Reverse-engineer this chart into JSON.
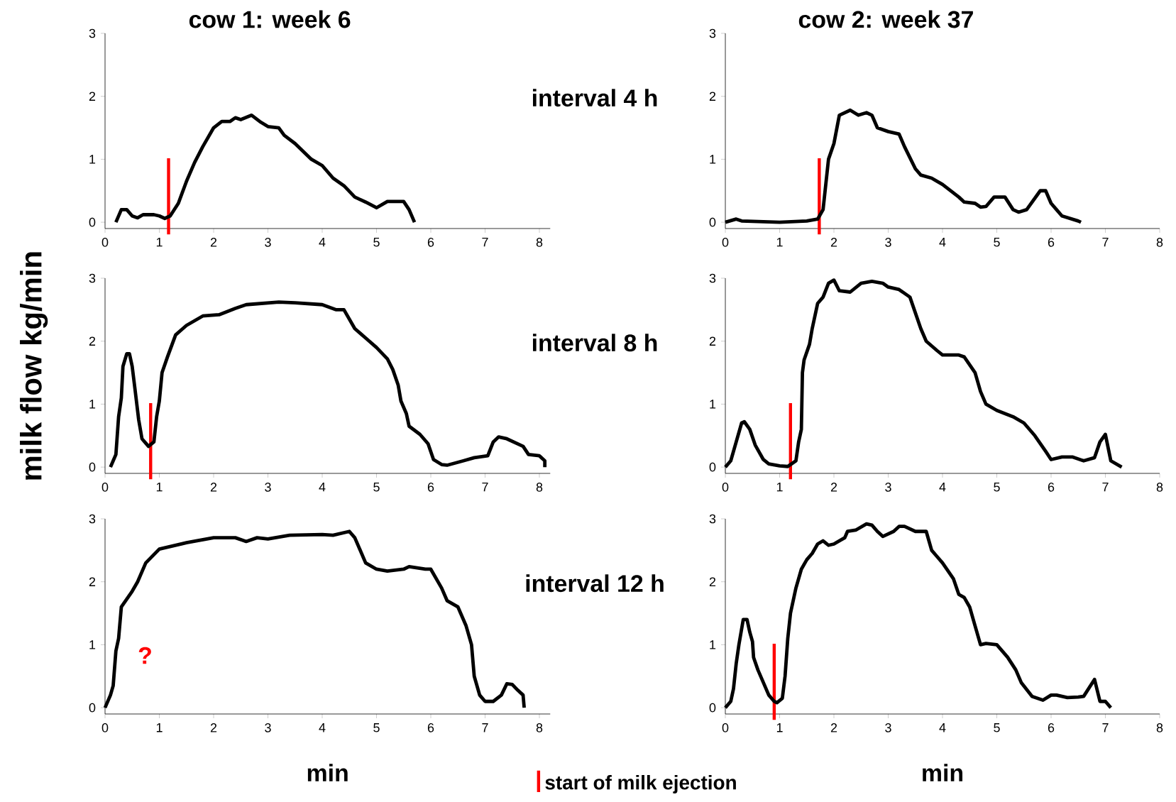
{
  "chart_data": [
    {
      "type": "line",
      "title": "cow 1: week 6",
      "xlim": [
        0,
        8.2
      ],
      "ylim": [
        -0.1,
        3
      ],
      "xticks": [
        0,
        1,
        2,
        3,
        4,
        5,
        6,
        7,
        8
      ],
      "yticks": [
        0,
        1,
        2,
        3
      ],
      "series": [
        {
          "color": "#000000",
          "x": [
            0.2,
            0.3,
            0.4,
            0.5,
            0.6,
            0.7,
            0.9,
            1.0,
            1.1,
            1.2,
            1.35,
            1.5,
            1.65,
            1.8,
            2.0,
            2.15,
            2.3,
            2.4,
            2.5,
            2.7,
            2.85,
            3.0,
            3.2,
            3.3,
            3.5,
            3.8,
            4.0,
            4.2,
            4.4,
            4.6,
            4.8,
            5.0,
            5.2,
            5.5,
            5.6,
            5.7
          ],
          "values": [
            0,
            0.2,
            0.2,
            0.1,
            0.07,
            0.12,
            0.12,
            0.1,
            0.06,
            0.1,
            0.3,
            0.65,
            0.95,
            1.2,
            1.5,
            1.6,
            1.6,
            1.66,
            1.63,
            1.7,
            1.6,
            1.52,
            1.5,
            1.38,
            1.25,
            1.0,
            0.9,
            0.7,
            0.58,
            0.4,
            0.32,
            0.23,
            0.33,
            0.33,
            0.2,
            0
          ]
        }
      ],
      "ref_lines": [
        {
          "axis": "x",
          "value": 1.17,
          "color": "#ff0000"
        }
      ],
      "annotations": [
        "interval 4 h"
      ]
    },
    {
      "type": "line",
      "title": "cow 2: week 37",
      "xlim": [
        0,
        8
      ],
      "ylim": [
        -0.1,
        3
      ],
      "xticks": [
        0,
        1,
        2,
        3,
        4,
        5,
        6,
        7,
        8
      ],
      "yticks": [
        0,
        1,
        2,
        3
      ],
      "series": [
        {
          "color": "#000000",
          "x": [
            0,
            0.2,
            0.3,
            1.0,
            1.5,
            1.7,
            1.8,
            1.9,
            2.0,
            2.1,
            2.3,
            2.45,
            2.6,
            2.7,
            2.8,
            3.0,
            3.2,
            3.3,
            3.5,
            3.6,
            3.8,
            4.0,
            4.3,
            4.4,
            4.6,
            4.7,
            4.8,
            4.95,
            5.15,
            5.3,
            5.4,
            5.55,
            5.8,
            5.9,
            6.0,
            6.1,
            6.2,
            6.5,
            6.55
          ],
          "values": [
            0,
            0.05,
            0.02,
            0,
            0.02,
            0.05,
            0.2,
            1.0,
            1.25,
            1.7,
            1.78,
            1.7,
            1.74,
            1.7,
            1.5,
            1.44,
            1.4,
            1.2,
            0.85,
            0.75,
            0.7,
            0.6,
            0.4,
            0.32,
            0.3,
            0.24,
            0.25,
            0.4,
            0.4,
            0.2,
            0.16,
            0.2,
            0.5,
            0.5,
            0.3,
            0.2,
            0.1,
            0.02,
            0
          ]
        }
      ],
      "ref_lines": [
        {
          "axis": "x",
          "value": 1.73,
          "color": "#ff0000"
        }
      ]
    },
    {
      "type": "line",
      "ylabel": "milk flow  kg/min",
      "xlim": [
        0,
        8.2
      ],
      "ylim": [
        -0.1,
        3
      ],
      "xticks": [
        0,
        1,
        2,
        3,
        4,
        5,
        6,
        7,
        8
      ],
      "yticks": [
        0,
        1,
        2,
        3
      ],
      "series": [
        {
          "color": "#000000",
          "x": [
            0.1,
            0.15,
            0.2,
            0.25,
            0.3,
            0.33,
            0.4,
            0.45,
            0.5,
            0.55,
            0.62,
            0.68,
            0.75,
            0.8,
            0.9,
            0.95,
            1.0,
            1.05,
            1.15,
            1.3,
            1.5,
            1.8,
            2.1,
            2.4,
            2.6,
            3.2,
            3.5,
            4.0,
            4.25,
            4.4,
            4.6,
            4.8,
            5.0,
            5.2,
            5.3,
            5.4,
            5.45,
            5.55,
            5.6,
            5.8,
            5.95,
            6.05,
            6.2,
            6.3,
            6.6,
            6.8,
            7.05,
            7.15,
            7.25,
            7.4,
            7.7,
            7.8,
            8.0,
            8.1,
            8.1
          ],
          "values": [
            0,
            0.1,
            0.2,
            0.8,
            1.1,
            1.6,
            1.8,
            1.8,
            1.6,
            1.25,
            0.75,
            0.45,
            0.38,
            0.33,
            0.4,
            0.8,
            1.05,
            1.5,
            1.75,
            2.1,
            2.25,
            2.4,
            2.42,
            2.52,
            2.58,
            2.62,
            2.61,
            2.58,
            2.5,
            2.5,
            2.2,
            2.05,
            1.9,
            1.72,
            1.55,
            1.3,
            1.05,
            0.85,
            0.65,
            0.52,
            0.37,
            0.12,
            0.04,
            0.03,
            0.1,
            0.15,
            0.18,
            0.4,
            0.48,
            0.45,
            0.33,
            0.2,
            0.18,
            0.1,
            0
          ]
        }
      ],
      "ref_lines": [
        {
          "axis": "x",
          "value": 0.84,
          "color": "#ff0000"
        }
      ],
      "annotations": [
        "interval 8 h"
      ]
    },
    {
      "type": "line",
      "xlim": [
        0,
        8
      ],
      "ylim": [
        -0.1,
        3
      ],
      "xticks": [
        0,
        1,
        2,
        3,
        4,
        5,
        6,
        7,
        8
      ],
      "yticks": [
        0,
        1,
        2,
        3
      ],
      "series": [
        {
          "color": "#000000",
          "x": [
            0,
            0.1,
            0.2,
            0.3,
            0.35,
            0.45,
            0.55,
            0.7,
            0.8,
            1.0,
            1.15,
            1.3,
            1.35,
            1.4,
            1.42,
            1.45,
            1.55,
            1.6,
            1.7,
            1.8,
            1.9,
            2.0,
            2.1,
            2.3,
            2.5,
            2.7,
            2.9,
            3.0,
            3.2,
            3.4,
            3.6,
            3.7,
            3.9,
            4.0,
            4.3,
            4.4,
            4.6,
            4.7,
            4.8,
            5.0,
            5.3,
            5.5,
            5.7,
            5.9,
            6.0,
            6.2,
            6.4,
            6.6,
            6.8,
            6.9,
            7.0,
            7.1,
            7.3
          ],
          "values": [
            0,
            0.1,
            0.4,
            0.7,
            0.72,
            0.6,
            0.35,
            0.12,
            0.05,
            0.02,
            0.01,
            0.1,
            0.4,
            0.6,
            1.5,
            1.7,
            1.95,
            2.2,
            2.6,
            2.7,
            2.92,
            2.97,
            2.8,
            2.78,
            2.92,
            2.95,
            2.92,
            2.86,
            2.82,
            2.7,
            2.2,
            2.0,
            1.85,
            1.78,
            1.78,
            1.75,
            1.5,
            1.2,
            1.0,
            0.9,
            0.8,
            0.7,
            0.5,
            0.25,
            0.12,
            0.16,
            0.16,
            0.1,
            0.15,
            0.4,
            0.52,
            0.1,
            0
          ]
        }
      ],
      "ref_lines": [
        {
          "axis": "x",
          "value": 1.2,
          "color": "#ff0000"
        }
      ]
    },
    {
      "type": "line",
      "xlabel": "min",
      "xlim": [
        0,
        8.2
      ],
      "ylim": [
        -0.1,
        3
      ],
      "xticks": [
        0,
        1,
        2,
        3,
        4,
        5,
        6,
        7,
        8
      ],
      "yticks": [
        0,
        1,
        2,
        3
      ],
      "series": [
        {
          "color": "#000000",
          "x": [
            0,
            0.1,
            0.15,
            0.2,
            0.25,
            0.3,
            0.5,
            0.6,
            0.75,
            1.0,
            1.5,
            2.0,
            2.4,
            2.6,
            2.8,
            3.0,
            3.4,
            4.0,
            4.2,
            4.5,
            4.6,
            4.8,
            5.0,
            5.2,
            5.5,
            5.6,
            5.9,
            6.0,
            6.2,
            6.3,
            6.5,
            6.65,
            6.75,
            6.8,
            6.9,
            7.0,
            7.15,
            7.3,
            7.4,
            7.5,
            7.6,
            7.7,
            7.72
          ],
          "values": [
            0,
            0.2,
            0.35,
            0.9,
            1.1,
            1.6,
            1.85,
            2.0,
            2.3,
            2.52,
            2.62,
            2.7,
            2.7,
            2.64,
            2.7,
            2.68,
            2.74,
            2.75,
            2.74,
            2.8,
            2.7,
            2.3,
            2.2,
            2.17,
            2.2,
            2.24,
            2.2,
            2.2,
            1.9,
            1.7,
            1.6,
            1.3,
            1.0,
            0.5,
            0.2,
            0.1,
            0.1,
            0.2,
            0.38,
            0.37,
            0.28,
            0.2,
            0
          ]
        }
      ],
      "annotations": [
        "interval 12 h",
        "?"
      ]
    },
    {
      "type": "line",
      "xlabel": "min",
      "xlim": [
        0,
        8
      ],
      "ylim": [
        -0.1,
        3
      ],
      "xticks": [
        0,
        1,
        2,
        3,
        4,
        5,
        6,
        7,
        8
      ],
      "yticks": [
        0,
        1,
        2,
        3
      ],
      "series": [
        {
          "color": "#000000",
          "x": [
            0,
            0.1,
            0.15,
            0.2,
            0.25,
            0.33,
            0.4,
            0.45,
            0.5,
            0.52,
            0.6,
            0.7,
            0.8,
            0.9,
            0.95,
            1.05,
            1.1,
            1.15,
            1.2,
            1.3,
            1.4,
            1.5,
            1.6,
            1.7,
            1.8,
            1.9,
            2.0,
            2.2,
            2.25,
            2.4,
            2.6,
            2.7,
            2.8,
            2.9,
            3.1,
            3.2,
            3.3,
            3.5,
            3.7,
            3.8,
            3.9,
            4.0,
            4.2,
            4.3,
            4.4,
            4.5,
            4.6,
            4.7,
            4.8,
            5.0,
            5.2,
            5.35,
            5.45,
            5.65,
            5.85,
            6.0,
            6.1,
            6.3,
            6.5,
            6.6,
            6.8,
            6.9,
            7.0,
            7.1
          ],
          "values": [
            0,
            0.1,
            0.3,
            0.7,
            1.0,
            1.4,
            1.4,
            1.2,
            1.05,
            0.8,
            0.6,
            0.4,
            0.2,
            0.1,
            0.08,
            0.15,
            0.5,
            1.1,
            1.5,
            1.9,
            2.2,
            2.35,
            2.45,
            2.6,
            2.65,
            2.58,
            2.6,
            2.7,
            2.8,
            2.82,
            2.92,
            2.9,
            2.8,
            2.72,
            2.8,
            2.88,
            2.88,
            2.8,
            2.8,
            2.5,
            2.4,
            2.3,
            2.05,
            1.8,
            1.75,
            1.6,
            1.3,
            1.0,
            1.02,
            1.0,
            0.8,
            0.6,
            0.4,
            0.18,
            0.12,
            0.2,
            0.2,
            0.16,
            0.17,
            0.18,
            0.45,
            0.1,
            0.1,
            0
          ]
        }
      ],
      "ref_lines": [
        {
          "axis": "x",
          "value": 0.9,
          "color": "#ff0000",
          "label": "start of milk ejection"
        }
      ]
    }
  ]
}
